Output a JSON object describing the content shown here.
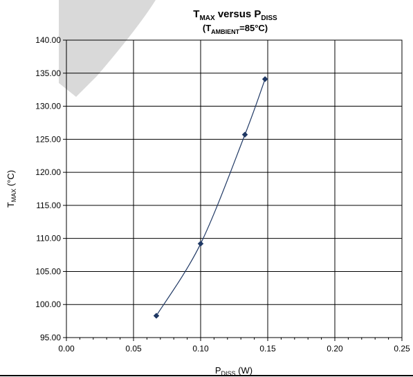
{
  "chart_data": {
    "type": "line",
    "title": {
      "main": "T",
      "main_sub": "MAX",
      "mid": " versus P",
      "mid_sub": "DISS"
    },
    "subtitle": {
      "open": "(T",
      "sub": "AMBIENT",
      "rest": "=85°C)"
    },
    "xlabel": {
      "main": "P",
      "sub": "DISS",
      "rest": " (W)"
    },
    "ylabel": {
      "main": "T",
      "sub": "MAX",
      "rest": " (°C)"
    },
    "xlim": [
      0,
      0.25
    ],
    "ylim": [
      95,
      140
    ],
    "xticks": [
      0,
      0.05,
      0.1,
      0.15,
      0.2,
      0.25
    ],
    "xtick_labels": [
      "0.00",
      "0.05",
      "0.10",
      "0.15",
      "0.20",
      "0.25"
    ],
    "yticks": [
      95,
      100,
      105,
      110,
      115,
      120,
      125,
      130,
      135,
      140
    ],
    "ytick_labels": [
      "95.00",
      "100.00",
      "105.00",
      "110.00",
      "115.00",
      "120.00",
      "125.00",
      "130.00",
      "135.00",
      "140.00"
    ],
    "grid": true,
    "line_color": "#1f3864",
    "series": [
      {
        "x": [
          0.067,
          0.1,
          0.133,
          0.148
        ],
        "y": [
          98.3,
          109.2,
          125.7,
          134.1
        ]
      }
    ]
  },
  "colors": {
    "background": "#ffffff",
    "grid": "#000000",
    "watermark": "#d9d9d9"
  }
}
